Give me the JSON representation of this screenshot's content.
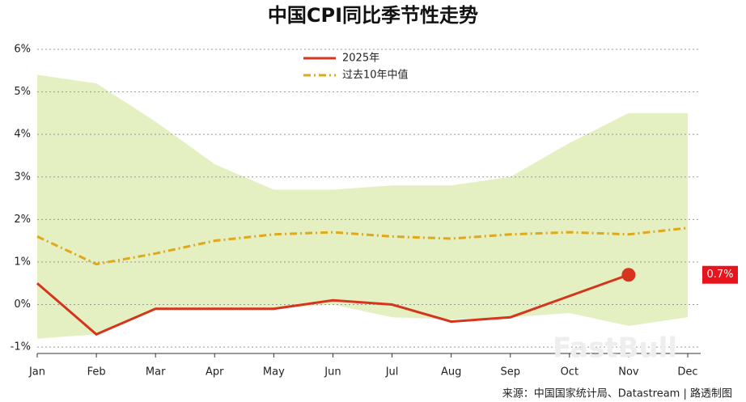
{
  "chart_data": {
    "type": "line",
    "title": "中国CPI同比季节性走势",
    "categories": [
      "Jan",
      "Feb",
      "Mar",
      "Apr",
      "May",
      "Jun",
      "Jul",
      "Aug",
      "Sep",
      "Oct",
      "Nov",
      "Dec"
    ],
    "series": [
      {
        "name": "2025年",
        "color": "#d4351c",
        "style": "solid",
        "values": [
          0.5,
          -0.7,
          -0.1,
          -0.1,
          -0.1,
          0.1,
          0.0,
          -0.4,
          -0.3,
          0.2,
          0.7,
          null
        ],
        "value_labels": [
          null,
          null,
          null,
          null,
          null,
          null,
          null,
          null,
          null,
          null,
          "0.7%",
          null
        ]
      },
      {
        "name": "过去10年中值",
        "color": "#e0a81a",
        "style": "dashdot",
        "values": [
          1.6,
          0.95,
          1.2,
          1.5,
          1.65,
          1.7,
          1.6,
          1.55,
          1.65,
          1.7,
          1.65,
          1.8
        ]
      }
    ],
    "band": {
      "color": "#e4efc2",
      "upper": [
        5.4,
        5.2,
        4.3,
        3.3,
        2.7,
        2.7,
        2.8,
        2.8,
        3.0,
        3.8,
        4.5,
        4.5
      ],
      "lower": [
        -0.8,
        -0.7,
        -0.1,
        -0.1,
        -0.1,
        0.0,
        -0.3,
        -0.35,
        -0.3,
        -0.2,
        -0.5,
        -0.3
      ]
    },
    "ylim": [
      -1.15,
      6
    ],
    "yticks": [
      {
        "value": -1,
        "label": "-1%"
      },
      {
        "value": 0,
        "label": "0%"
      },
      {
        "value": 1,
        "label": "1%"
      },
      {
        "value": 2,
        "label": "2%"
      },
      {
        "value": 3,
        "label": "3%"
      },
      {
        "value": 4,
        "label": "4%"
      },
      {
        "value": 5,
        "label": "5%"
      },
      {
        "value": 6,
        "label": "6%"
      }
    ],
    "grid": true,
    "source": "来源：中国国家统计局、Datastream | 路透制图",
    "watermark": "FastBull"
  }
}
